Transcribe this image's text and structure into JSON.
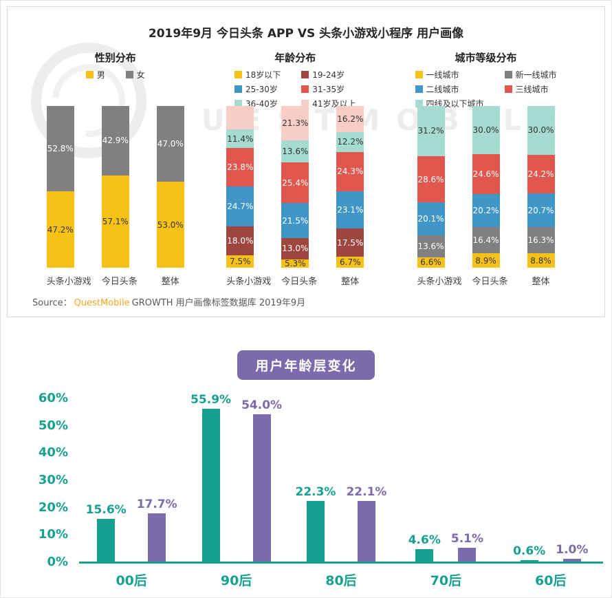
{
  "page": {
    "watermark": "QUESTMOBILE",
    "top_title": "2019年9月 今日头条 APP VS 头条小游戏小程序 用户画像",
    "source": {
      "prefix": "Source：",
      "brand": "QuestMobile",
      "suffix": "GROWTH 用户画像标签数据库 2019年9月"
    }
  },
  "chart_data": [
    {
      "type": "bar",
      "stacked": true,
      "title": "性别分布",
      "categories": [
        "头条小游戏",
        "今日头条",
        "整体"
      ],
      "ylim": [
        0,
        100
      ],
      "series": [
        {
          "name": "男",
          "color": "#F7C217",
          "label_color": "#333333",
          "values": [
            47.2,
            57.1,
            53.0
          ],
          "labels": [
            "47.2%",
            "57.1%",
            "53.0%"
          ]
        },
        {
          "name": "女",
          "color": "#808080",
          "label_color": "#ffffff",
          "values": [
            52.8,
            42.9,
            47.0
          ],
          "labels": [
            "52.8%",
            "42.9%",
            "47.0%"
          ]
        }
      ]
    },
    {
      "type": "bar",
      "stacked": true,
      "title": "年龄分布",
      "categories": [
        "头条小游戏",
        "今日头条",
        "整体"
      ],
      "ylim": [
        0,
        100
      ],
      "series": [
        {
          "name": "18岁以下",
          "color": "#F7C217",
          "label_color": "#333333",
          "values": [
            7.5,
            5.3,
            6.7
          ],
          "labels": [
            "7.5%",
            "5.3%",
            "6.7%"
          ]
        },
        {
          "name": "19-24岁",
          "color": "#9E453E",
          "label_color": "#ffffff",
          "values": [
            18.0,
            13.0,
            17.5
          ],
          "labels": [
            "18.0%",
            "13.0%",
            "17.5%"
          ]
        },
        {
          "name": "25-30岁",
          "color": "#4097C7",
          "label_color": "#ffffff",
          "values": [
            24.7,
            21.5,
            23.1
          ],
          "labels": [
            "24.7%",
            "21.5%",
            "23.1%"
          ]
        },
        {
          "name": "31-35岁",
          "color": "#E2574D",
          "label_color": "#ffffff",
          "values": [
            23.8,
            25.4,
            24.3
          ],
          "labels": [
            "23.8%",
            "25.4%",
            "24.3%"
          ]
        },
        {
          "name": "36-40岁",
          "color": "#A5DBD1",
          "label_color": "#333333",
          "values": [
            11.4,
            13.6,
            12.2
          ],
          "labels": [
            "11.4%",
            "13.6%",
            "12.2%"
          ]
        },
        {
          "name": "41岁及以上",
          "color": "#F7CDC5",
          "label_color": "#333333",
          "values": [
            14.6,
            21.3,
            16.2
          ],
          "labels": [
            "",
            "21.3%",
            "16.2%"
          ]
        }
      ]
    },
    {
      "type": "bar",
      "stacked": true,
      "title": "城市等级分布",
      "categories": [
        "头条小游戏",
        "今日头条",
        "整体"
      ],
      "ylim": [
        0,
        100
      ],
      "series": [
        {
          "name": "一线城市",
          "color": "#F7C217",
          "label_color": "#333333",
          "values": [
            6.6,
            8.9,
            8.8
          ],
          "labels": [
            "6.6%",
            "8.9%",
            "8.8%"
          ]
        },
        {
          "name": "新一线城市",
          "color": "#808080",
          "label_color": "#ffffff",
          "values": [
            13.6,
            16.4,
            16.3
          ],
          "labels": [
            "13.6%",
            "16.4%",
            "16.3%"
          ]
        },
        {
          "name": "二线城市",
          "color": "#4097C7",
          "label_color": "#ffffff",
          "values": [
            20.1,
            20.2,
            20.7
          ],
          "labels": [
            "20.1%",
            "20.2%",
            "20.7%"
          ]
        },
        {
          "name": "三线城市",
          "color": "#E2574D",
          "label_color": "#ffffff",
          "values": [
            28.6,
            24.6,
            24.2
          ],
          "labels": [
            "28.6%",
            "24.6%",
            "24.2%"
          ]
        },
        {
          "name": "四线及以下城市",
          "color": "#A5DBD1",
          "label_color": "#333333",
          "values": [
            31.2,
            30.0,
            30.0
          ],
          "labels": [
            "31.2%",
            "30.0%",
            "30.0%"
          ]
        }
      ]
    },
    {
      "type": "bar",
      "stacked": false,
      "title": "用户年龄层变化",
      "categories": [
        "00后",
        "90后",
        "80后",
        "70后",
        "60后"
      ],
      "ylim": [
        0,
        60
      ],
      "y_ticks": [
        "0%",
        "10%",
        "20%",
        "30%",
        "40%",
        "50%",
        "60%"
      ],
      "series": [
        {
          "name": "",
          "color": "#16A08F",
          "values": [
            15.6,
            55.9,
            22.3,
            4.6,
            0.6
          ],
          "labels": [
            "15.6%",
            "55.9%",
            "22.3%",
            "4.6%",
            "0.6%"
          ]
        },
        {
          "name": "",
          "color": "#7C6BAC",
          "values": [
            17.7,
            54.0,
            22.1,
            5.1,
            1.0
          ],
          "labels": [
            "17.7%",
            "54.0%",
            "22.1%",
            "5.1%",
            "1.0%"
          ]
        }
      ]
    }
  ]
}
